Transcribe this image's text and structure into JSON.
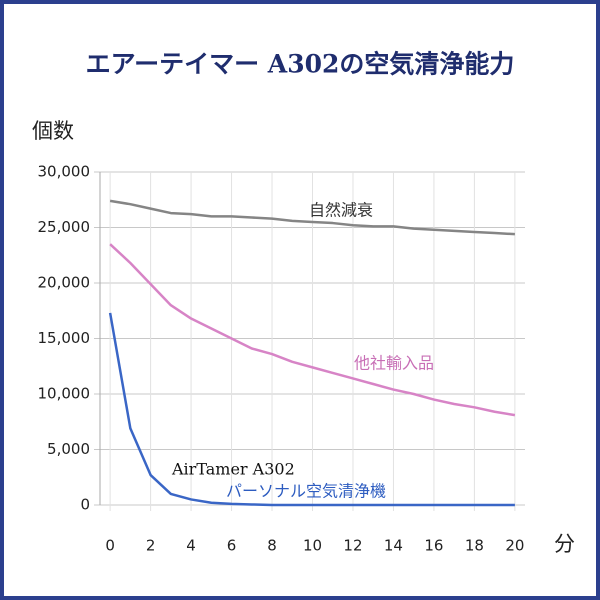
{
  "chart_data": {
    "type": "line",
    "title": "エアーテイマー A302の空気清浄能力",
    "y_label": "個数",
    "x_label": "分",
    "x": [
      0,
      1,
      2,
      3,
      4,
      5,
      6,
      7,
      8,
      9,
      10,
      11,
      12,
      13,
      14,
      15,
      16,
      17,
      18,
      19,
      20
    ],
    "series": [
      {
        "name": "自然減衰",
        "color": "#858585",
        "label_color": "#333333",
        "values": [
          27400,
          27100,
          26700,
          26300,
          26200,
          26000,
          26000,
          25900,
          25800,
          25600,
          25500,
          25400,
          25200,
          25100,
          25100,
          24900,
          24800,
          24700,
          24600,
          24500,
          24400
        ]
      },
      {
        "name": "他社輸入品",
        "color": "#d784c6",
        "label_color": "#c86fb6",
        "values": [
          23500,
          21800,
          19900,
          18000,
          16800,
          15900,
          15000,
          14100,
          13600,
          12900,
          12400,
          11900,
          11400,
          10900,
          10400,
          10000,
          9500,
          9100,
          8800,
          8400,
          8100
        ]
      },
      {
        "name": "AirTamer A302",
        "color": "#3a66c6",
        "label_color": "#111111",
        "values": [
          17300,
          6900,
          2700,
          1000,
          500,
          200,
          100,
          50,
          0,
          0,
          0,
          0,
          0,
          0,
          0,
          0,
          0,
          0,
          0,
          0,
          0
        ]
      }
    ],
    "annotations": [
      {
        "text": "パーソナル空気清浄機",
        "color": "#2d5cc0"
      }
    ],
    "xlim": [
      -0.5,
      20.5
    ],
    "xticks": [
      0,
      2,
      4,
      6,
      8,
      10,
      12,
      14,
      16,
      18,
      20
    ],
    "ylim": [
      0,
      30000
    ],
    "yticks": [
      0,
      {
        "value": 5000,
        "label": "5,000"
      },
      {
        "value": 10000,
        "label": "10,000"
      },
      {
        "value": 15000,
        "label": "15,000"
      },
      {
        "value": 20000,
        "label": "20,000"
      },
      {
        "value": 25000,
        "label": "25,000"
      },
      {
        "value": 30000,
        "label": "30,000"
      }
    ],
    "grid": true
  }
}
